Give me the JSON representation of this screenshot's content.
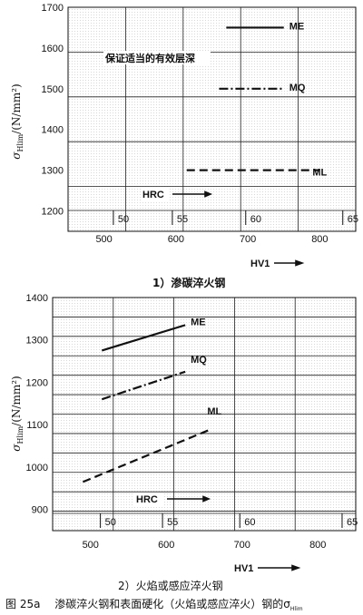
{
  "figure_caption": {
    "number": "图 25a",
    "text": "渗碳淬火钢和表面硬化（火焰或感应淬火）钢的σ",
    "subscript": "Hlim"
  },
  "chart_data": [
    {
      "type": "line",
      "subtitle": "1）渗碳淬火钢",
      "ylabel": "σHlim/(N/mm²)",
      "ylabel_main": "σ",
      "ylabel_sub": "Hlim",
      "ylabel_unit": "/(N/mm²)",
      "xlabel": "HV1",
      "xlim": [
        450,
        850
      ],
      "ylim": [
        1150,
        1700
      ],
      "x_ticks": [
        500,
        600,
        700,
        800
      ],
      "y_ticks": [
        1200,
        1300,
        1400,
        1500,
        1600,
        1700
      ],
      "hrc_label": "HRC",
      "hrc_ticks": [
        {
          "label": "50",
          "hv": 513
        },
        {
          "label": "55",
          "hv": 595
        },
        {
          "label": "60",
          "hv": 697
        },
        {
          "label": "65",
          "hv": 832
        }
      ],
      "annotation": "保证适当的有效层深",
      "grid": true,
      "series": [
        {
          "name": "ME",
          "style": "solid",
          "x": [
            670,
            750
          ],
          "y": [
            1650,
            1650
          ]
        },
        {
          "name": "MQ",
          "style": "dashdot",
          "x": [
            660,
            750
          ],
          "y": [
            1500,
            1500
          ]
        },
        {
          "name": "ML",
          "style": "dashed",
          "x": [
            615,
            800
          ],
          "y": [
            1300,
            1300
          ]
        }
      ]
    },
    {
      "type": "line",
      "subtitle": "2）火焰或感应淬火钢",
      "ylabel": "σHlim/(N/mm²)",
      "ylabel_main": "σ",
      "ylabel_sub": "Hlim",
      "ylabel_unit": "/(N/mm²)",
      "xlabel": "HV1",
      "xlim": [
        450,
        850
      ],
      "ylim": [
        850,
        1400
      ],
      "x_ticks": [
        500,
        600,
        700,
        800
      ],
      "y_ticks": [
        900,
        1000,
        1100,
        1200,
        1300,
        1400
      ],
      "hrc_label": "HRC",
      "hrc_ticks": [
        {
          "label": "50",
          "hv": 513
        },
        {
          "label": "55",
          "hv": 595
        },
        {
          "label": "60",
          "hv": 697
        },
        {
          "label": "65",
          "hv": 832
        }
      ],
      "grid": true,
      "series": [
        {
          "name": "ME",
          "style": "solid",
          "x": [
            515,
            625
          ],
          "y": [
            1275,
            1335
          ]
        },
        {
          "name": "MQ",
          "style": "dashdot",
          "x": [
            515,
            625
          ],
          "y": [
            1160,
            1225
          ]
        },
        {
          "name": "ML",
          "style": "dashed",
          "x": [
            490,
            660
          ],
          "y": [
            965,
            1090
          ]
        }
      ]
    }
  ]
}
